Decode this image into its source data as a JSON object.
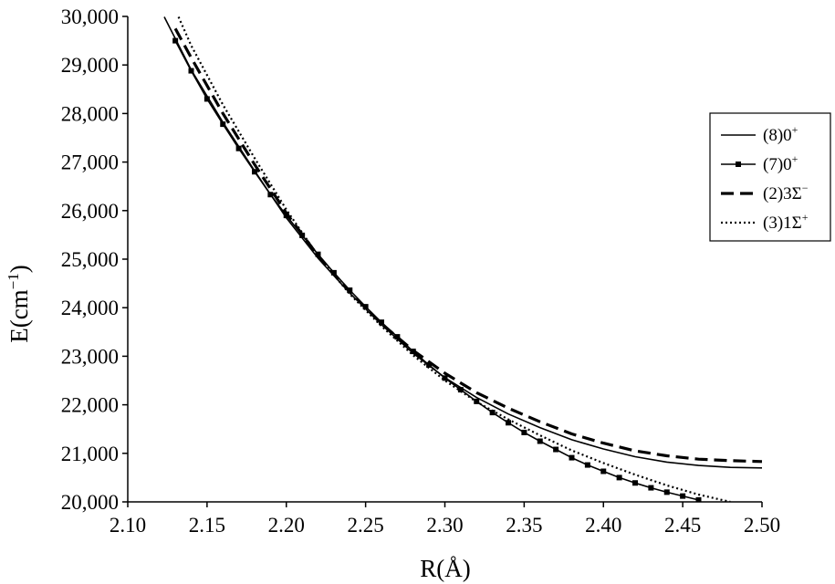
{
  "chart_data": {
    "type": "line",
    "xlabel": "R(Å)",
    "ylabel_main": "E(cm",
    "ylabel_sup": "−1",
    "ylabel_close": ")",
    "xlim": [
      2.1,
      2.5
    ],
    "ylim": [
      20000,
      30000
    ],
    "xticks": [
      2.1,
      2.15,
      2.2,
      2.25,
      2.3,
      2.35,
      2.4,
      2.45,
      2.5
    ],
    "xtick_labels": [
      "2.10",
      "2.15",
      "2.20",
      "2.25",
      "2.30",
      "2.35",
      "2.40",
      "2.45",
      "2.50"
    ],
    "yticks": [
      20000,
      21000,
      22000,
      23000,
      24000,
      25000,
      26000,
      27000,
      28000,
      29000,
      30000
    ],
    "ytick_labels": [
      "20,000",
      "21,000",
      "22,000",
      "23,000",
      "24,000",
      "25,000",
      "26,000",
      "27,000",
      "28,000",
      "29,000",
      "30,000"
    ],
    "grid": false,
    "legend_position": "right",
    "series": [
      {
        "name_main": "(8)0",
        "name_sup": "+",
        "style": "solid",
        "marker": "none",
        "color": "#000000",
        "x": [
          2.123,
          2.14,
          2.16,
          2.18,
          2.2,
          2.22,
          2.24,
          2.26,
          2.28,
          2.3,
          2.32,
          2.34,
          2.36,
          2.38,
          2.4,
          2.42,
          2.44,
          2.46,
          2.48,
          2.5
        ],
        "y": [
          29990,
          28900,
          27820,
          26820,
          25850,
          25020,
          24300,
          23650,
          23060,
          22560,
          22150,
          21810,
          21530,
          21280,
          21090,
          20930,
          20820,
          20750,
          20710,
          20700
        ]
      },
      {
        "name_main": "(7)0",
        "name_sup": "+",
        "style": "solid",
        "marker": "square",
        "color": "#000000",
        "x": [
          2.13,
          2.14,
          2.15,
          2.16,
          2.17,
          2.18,
          2.19,
          2.2,
          2.21,
          2.22,
          2.23,
          2.24,
          2.25,
          2.26,
          2.27,
          2.28,
          2.29,
          2.3,
          2.31,
          2.32,
          2.33,
          2.34,
          2.35,
          2.36,
          2.37,
          2.38,
          2.39,
          2.4,
          2.41,
          2.42,
          2.43,
          2.44,
          2.45,
          2.46
        ],
        "y": [
          29500,
          28880,
          28300,
          27780,
          27280,
          26800,
          26330,
          25900,
          25490,
          25100,
          24720,
          24360,
          24020,
          23700,
          23400,
          23100,
          22820,
          22550,
          22310,
          22070,
          21840,
          21630,
          21430,
          21250,
          21080,
          20910,
          20760,
          20630,
          20500,
          20390,
          20290,
          20200,
          20120,
          20040
        ]
      },
      {
        "name_main": "(2)3Σ",
        "name_sup": "−",
        "style": "dashed",
        "marker": "none",
        "color": "#000000",
        "x": [
          2.13,
          2.14,
          2.16,
          2.18,
          2.2,
          2.22,
          2.24,
          2.26,
          2.28,
          2.3,
          2.32,
          2.34,
          2.36,
          2.38,
          2.4,
          2.42,
          2.44,
          2.46,
          2.48,
          2.5
        ],
        "y": [
          29750,
          29150,
          28000,
          26950,
          25950,
          25070,
          24330,
          23670,
          23120,
          22650,
          22250,
          21930,
          21650,
          21400,
          21210,
          21050,
          20950,
          20880,
          20850,
          20830
        ]
      },
      {
        "name_main": "(3)1Σ",
        "name_sup": "+",
        "style": "dotted",
        "marker": "none",
        "color": "#000000",
        "x": [
          2.132,
          2.14,
          2.16,
          2.18,
          2.2,
          2.22,
          2.24,
          2.26,
          2.28,
          2.3,
          2.32,
          2.34,
          2.36,
          2.38,
          2.4,
          2.42,
          2.44,
          2.46,
          2.48
        ],
        "y": [
          29990,
          29400,
          28180,
          27080,
          26020,
          25070,
          24280,
          23620,
          23020,
          22500,
          22060,
          21700,
          21370,
          21060,
          20800,
          20560,
          20340,
          20150,
          20000
        ]
      }
    ]
  }
}
